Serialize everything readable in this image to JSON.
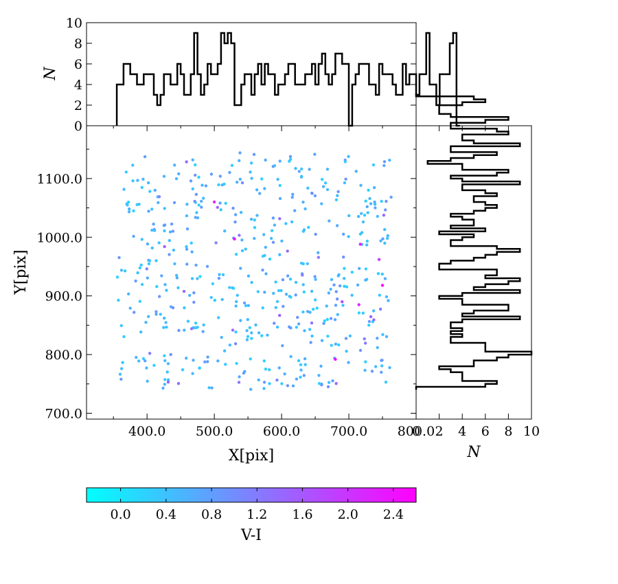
{
  "chart_data": [
    {
      "panel": "scatter",
      "type": "scatter",
      "xlabel": "X[pix]",
      "ylabel": "Y[pix]",
      "xlim": [
        310,
        800
      ],
      "ylim": [
        690,
        1190
      ],
      "xticks": [
        "400.0",
        "500.0",
        "600.0",
        "700.0",
        "800.0"
      ],
      "yticks": [
        "700.0",
        "800.0",
        "900.0",
        "1000.0",
        "1100.0"
      ],
      "color_by": "V-I",
      "notes": "approx. 520 stars between X 355-765 and Y 740-1145; 'points' lists [x, y, V-I]; highlighted magenta points listed separately",
      "highlight_points": [
        [
          530,
          997,
          2.6
        ],
        [
          500,
          1060,
          2.2
        ],
        [
          717,
          988,
          2.2
        ],
        [
          750,
          918,
          2.6
        ],
        [
          715,
          885,
          2.2
        ],
        [
          680,
          792,
          2.4
        ],
        [
          745,
          962,
          1.9
        ],
        [
          690,
          890,
          1.8
        ]
      ],
      "points": []
    },
    {
      "panel": "top-histogram",
      "type": "histogram",
      "orientation": "vertical",
      "ylabel": "N",
      "xlim": [
        310,
        800
      ],
      "ylim": [
        0,
        10
      ],
      "yticks": [
        "0",
        "2",
        "4",
        "6",
        "8",
        "10"
      ],
      "bin_start": 355,
      "bin_width": 5,
      "counts": [
        4,
        4,
        6,
        6,
        5,
        5,
        4,
        4,
        5,
        5,
        5,
        3,
        2,
        3,
        5,
        5,
        4,
        4,
        6,
        5,
        3,
        3,
        5,
        9,
        5,
        3,
        4,
        6,
        5,
        5,
        6,
        9,
        8,
        9,
        8,
        2,
        2,
        4,
        5,
        5,
        3,
        5,
        6,
        4,
        6,
        5,
        5,
        3,
        4,
        4,
        5,
        6,
        6,
        4,
        4,
        4,
        5,
        5,
        6,
        4,
        6,
        7,
        5,
        4,
        5,
        7,
        7,
        6,
        6,
        0,
        4,
        5,
        6,
        6,
        6,
        4,
        4,
        3,
        6,
        5,
        5,
        5,
        4,
        3,
        3,
        6,
        4,
        5,
        5,
        3,
        5,
        5,
        9,
        4,
        4,
        2,
        5,
        5,
        5,
        8,
        9,
        0
      ]
    },
    {
      "panel": "right-histogram",
      "type": "histogram",
      "orientation": "horizontal",
      "xlabel": "N",
      "xlim": [
        0,
        10
      ],
      "ylim": [
        690,
        1190
      ],
      "xticks": [
        "0",
        "2",
        "4",
        "6",
        "8",
        "10"
      ],
      "bin_start": 740,
      "bin_width": 5,
      "counts": [
        0,
        6,
        7,
        4,
        4,
        4,
        3,
        2,
        5,
        5,
        7,
        8,
        10,
        6,
        6,
        6,
        3,
        3,
        4,
        3,
        4,
        3,
        3,
        4,
        9,
        4,
        5,
        8,
        8,
        4,
        4,
        2,
        4,
        9,
        5,
        6,
        8,
        9,
        6,
        7,
        7,
        2,
        2,
        3,
        5,
        6,
        7,
        9,
        7,
        3,
        3,
        4,
        5,
        2,
        6,
        3,
        5,
        5,
        4,
        3,
        5,
        6,
        7,
        6,
        5,
        5,
        7,
        6,
        4,
        4,
        9,
        4,
        3,
        7,
        8,
        4,
        4,
        1,
        3,
        5,
        7,
        3,
        3,
        9,
        5,
        4,
        4,
        8,
        7,
        3,
        3,
        6,
        8,
        3,
        2,
        2,
        2,
        4,
        6,
        5,
        0
      ]
    },
    {
      "panel": "colorbar",
      "type": "colorbar",
      "label": "V-I",
      "range": [
        -0.3,
        2.6
      ],
      "ticks": [
        "0.0",
        "0.4",
        "0.8",
        "1.2",
        "1.6",
        "2.0",
        "2.4"
      ],
      "colormap": [
        "#00ffff",
        "#ff00ff"
      ]
    }
  ]
}
